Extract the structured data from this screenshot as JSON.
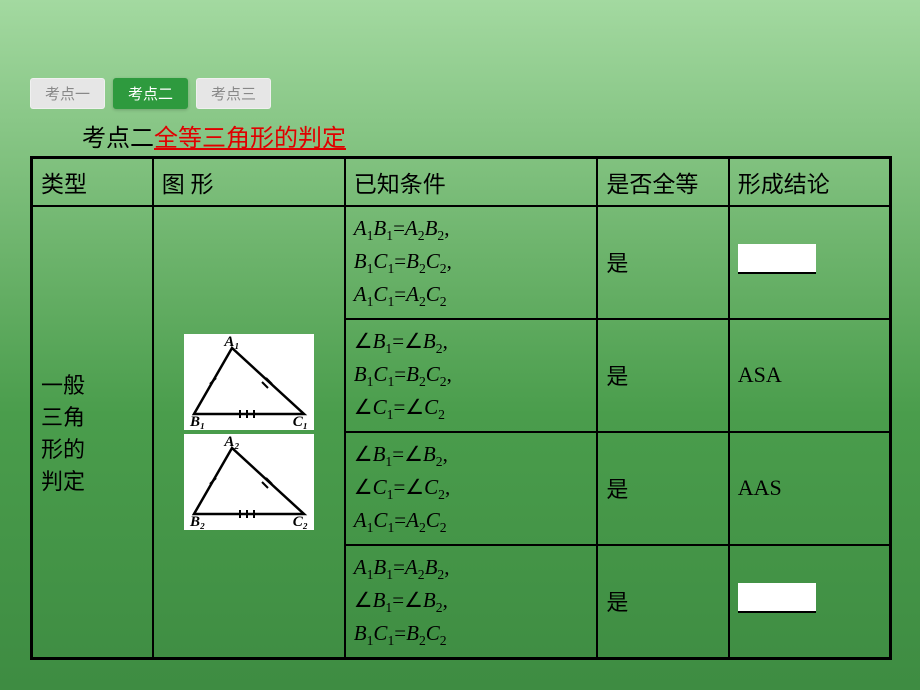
{
  "colors": {
    "bg_top": "#a3d9a0",
    "bg_bot": "#3e8c42",
    "tab_inactive_bg": "#e6e6e6",
    "tab_inactive_fg": "#888888",
    "tab_active_bg": "#2e9a3e",
    "tab_active_fg": "#ffffff",
    "heading_red": "#e00000",
    "border": "#000000",
    "blank_bg": "#ffffff"
  },
  "tabs": {
    "items": [
      {
        "label": "考点一",
        "active": false
      },
      {
        "label": "考点二",
        "active": true
      },
      {
        "label": "考点三",
        "active": false
      }
    ]
  },
  "heading": {
    "prefix": "考点二",
    "title": "全等三角形的判定"
  },
  "table": {
    "headers": {
      "type": "类型",
      "shape": "图      形",
      "cond": "已知条件",
      "congruent": "是否全等",
      "conclusion": "形成结论"
    },
    "type_label_lines": [
      "一般",
      "三角",
      "形的",
      "判定"
    ],
    "rows": [
      {
        "conditions_html": "<span class='math'>A<sub>1</sub>B<sub>1</sub><span class='n'>=</span>A<sub>2</sub>B<sub>2</sub><span class='n'>,</span><br>B<sub>1</sub>C<sub>1</sub><span class='n'>=</span>B<sub>2</sub>C<sub>2</sub><span class='n'>,</span><br>A<sub>1</sub>C<sub>1</sub><span class='n'>=</span>A<sub>2</sub>C<sub>2</sub></span>",
        "congruent": "是",
        "conclusion_blank": true,
        "conclusion": ""
      },
      {
        "conditions_html": "<span class='math'><span class='n'>∠</span>B<sub>1</sub><span class='n'>=∠</span>B<sub>2</sub><span class='n'>,</span><br>B<sub>1</sub>C<sub>1</sub><span class='n'>=</span>B<sub>2</sub>C<sub>2</sub><span class='n'>,</span><br><span class='n'>∠</span>C<sub>1</sub><span class='n'>=∠</span>C<sub>2</sub></span>",
        "congruent": "是",
        "conclusion_blank": false,
        "conclusion": "ASA"
      },
      {
        "conditions_html": "<span class='math'><span class='n'>∠</span>B<sub>1</sub><span class='n'>=∠</span>B<sub>2</sub><span class='n'>,</span><br><span class='n'>∠</span>C<sub>1</sub><span class='n'>=∠</span>C<sub>2</sub><span class='n'>,</span><br>A<sub>1</sub>C<sub>1</sub><span class='n'>=</span>A<sub>2</sub>C<sub>2</sub></span>",
        "congruent": "是",
        "conclusion_blank": false,
        "conclusion": "AAS"
      },
      {
        "conditions_html": "<span class='math'>A<sub>1</sub>B<sub>1</sub><span class='n'>=</span>A<sub>2</sub>B<sub>2</sub><span class='n'>,</span><br><span class='n'>∠</span>B<sub>1</sub><span class='n'>=∠</span>B<sub>2</sub><span class='n'>,</span><br>B<sub>1</sub>C<sub>1</sub><span class='n'>=</span>B<sub>2</sub>C<sub>2</sub></span>",
        "congruent": "是",
        "conclusion_blank": true,
        "conclusion": ""
      }
    ],
    "triangles": [
      {
        "A": "A₁",
        "B": "B₁",
        "C": "C₁"
      },
      {
        "A": "A₂",
        "B": "B₂",
        "C": "C₂"
      }
    ]
  }
}
